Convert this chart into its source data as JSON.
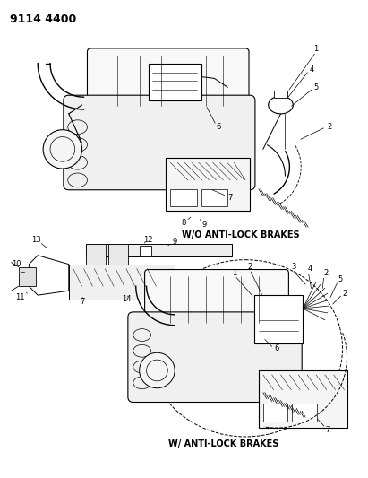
{
  "title": "9114 4400",
  "background_color": "#ffffff",
  "text_color": "#000000",
  "line_color": "#000000",
  "label1_text": "W/O ANTI-LOCK BRAKES",
  "label2_text": "W/ ANTI-LOCK BRAKES",
  "title_fontsize": 9,
  "label_fontsize": 7,
  "part_label_fontsize": 6
}
